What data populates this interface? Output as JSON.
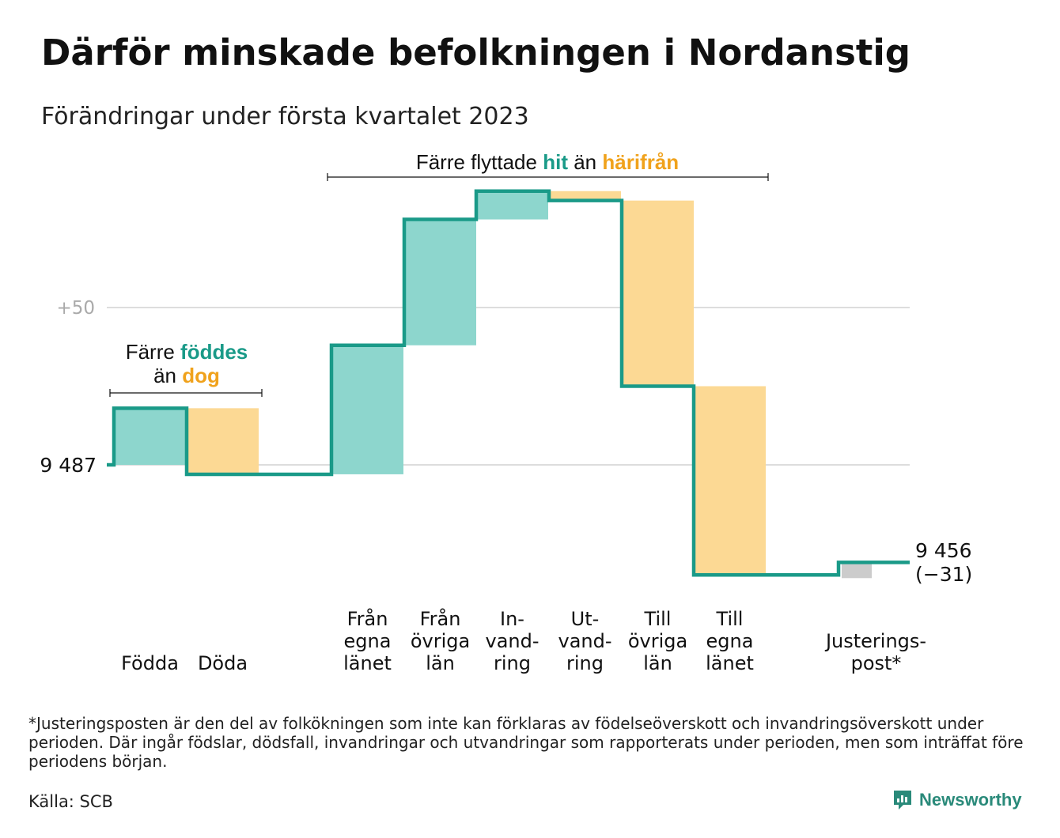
{
  "title": "Därför minskade befolkningen i Nordanstig",
  "subtitle": "Förändringar under första kvartalet 2023",
  "footnote": "*Justeringsposten är den del av folkökningen som inte kan förklaras av födelseöverskott och invandringsöverskott under perioden. Där ingår födslar, dödsfall, invandringar och utvandringar som rapporterats under perioden, men som inträffat före periodens början.",
  "source": "Källa: SCB",
  "brand": "Newsworthy",
  "colors": {
    "teal_line": "#1a9a88",
    "teal_fill": "#8dd6cd",
    "orange_fill": "#fcd994",
    "gray_fill": "#cccccc",
    "grid": "#dddddd",
    "teal_text": "#1a9a88",
    "orange_text": "#f0a21c"
  },
  "annotations": {
    "births": {
      "line1": "Färre",
      "teal": "föddes",
      "line2a": "än",
      "orange": "dog"
    },
    "migration": {
      "pre": "Färre flyttade",
      "teal": "hit",
      "mid": "än",
      "orange": "härifrån"
    }
  },
  "chart_data": {
    "type": "waterfall",
    "start_label": "9 487",
    "end_label_line1": "9 456",
    "end_label_line2": "(−31)",
    "start_value": 9487,
    "end_value": 9456,
    "tick_labels": [
      "+50"
    ],
    "y_ticks": [
      0,
      50
    ],
    "ylim": [
      -37,
      86
    ],
    "categories": [
      {
        "lines": [
          "Födda"
        ],
        "value": 18,
        "kind": "in",
        "group": 0
      },
      {
        "lines": [
          "Döda"
        ],
        "value": -21,
        "kind": "out",
        "group": 0
      },
      {
        "lines": [
          "Från",
          "egna",
          "länet"
        ],
        "value": 41,
        "kind": "in",
        "group": 1
      },
      {
        "lines": [
          "Från",
          "övriga",
          "län"
        ],
        "value": 40,
        "kind": "in",
        "group": 1
      },
      {
        "lines": [
          "In-",
          "vand-",
          "ring"
        ],
        "value": 9,
        "kind": "in",
        "group": 1
      },
      {
        "lines": [
          "Ut-",
          "vand-",
          "ring"
        ],
        "value": -3,
        "kind": "out",
        "group": 1
      },
      {
        "lines": [
          "Till",
          "övriga",
          "län"
        ],
        "value": -59,
        "kind": "out",
        "group": 1
      },
      {
        "lines": [
          "Till",
          "egna",
          "länet"
        ],
        "value": -60,
        "kind": "out",
        "group": 1
      },
      {
        "lines": [
          "Justerings-",
          "post*"
        ],
        "value": 4,
        "kind": "adj",
        "group": 2
      }
    ]
  }
}
